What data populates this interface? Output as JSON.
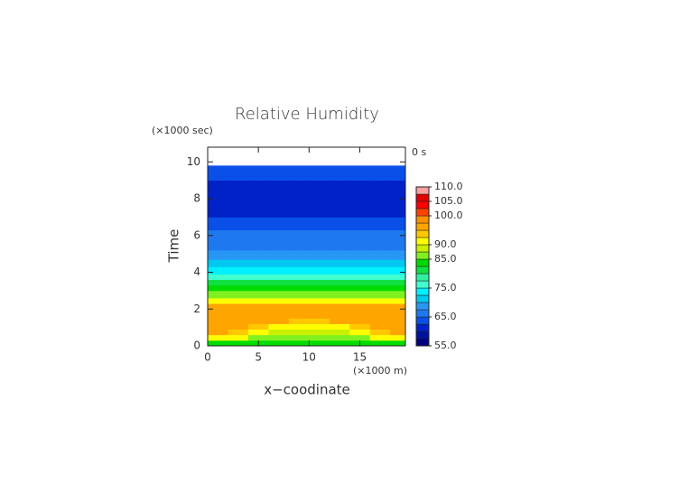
{
  "chart_data": {
    "type": "contour",
    "title": "Relative Humidity",
    "xlabel": "x−coodinate",
    "ylabel": "Time",
    "x_unit": "(×1000 m)",
    "y_unit": "(×1000 sec)",
    "time_label": "0 s",
    "xlim": [
      0,
      19.5
    ],
    "ylim": [
      0,
      10.8
    ],
    "xticks": [
      0,
      5,
      10,
      15
    ],
    "yticks": [
      0,
      2,
      4,
      6,
      8,
      10
    ],
    "x": [
      0,
      2,
      4,
      6,
      8,
      10,
      12,
      14,
      16,
      18,
      19.5
    ],
    "y": [
      0,
      0.3,
      0.6,
      0.9,
      1.2,
      1.5,
      2.0,
      2.3,
      2.6,
      3.0,
      3.3,
      3.6,
      3.9,
      4.3,
      4.7,
      5.2,
      5.7,
      6.3,
      7.0,
      8.0,
      9.0,
      9.8
    ],
    "z": [
      [
        83,
        83,
        83,
        83,
        84,
        84,
        83,
        83,
        83,
        83
      ],
      [
        91,
        90,
        87,
        86,
        86,
        86,
        86,
        87,
        90,
        91
      ],
      [
        95,
        94,
        91,
        89,
        88,
        88,
        89,
        91,
        94,
        95
      ],
      [
        96,
        96,
        94,
        92,
        91,
        91,
        92,
        94,
        96,
        96
      ],
      [
        96,
        96,
        96,
        95,
        94,
        94,
        95,
        96,
        96,
        96
      ],
      [
        96,
        96,
        96,
        96,
        96,
        96,
        96,
        96,
        96,
        96
      ],
      [
        95,
        95,
        95,
        95,
        95,
        95,
        95,
        95,
        95,
        95
      ],
      [
        91,
        91,
        91,
        91,
        91,
        91,
        91,
        91,
        91,
        91
      ],
      [
        86,
        86,
        86,
        86,
        86,
        86,
        86,
        86,
        86,
        86
      ],
      [
        84,
        84,
        84,
        84,
        84,
        84,
        84,
        84,
        84,
        84
      ],
      [
        81,
        81,
        81,
        81,
        81,
        81,
        81,
        81,
        81,
        81
      ],
      [
        77,
        77,
        77,
        77,
        77,
        77,
        77,
        77,
        77,
        77
      ],
      [
        74,
        74,
        74,
        74,
        74,
        74,
        74,
        74,
        74,
        74
      ],
      [
        72,
        72,
        72,
        72,
        72,
        72,
        72,
        72,
        72,
        72
      ],
      [
        68,
        68,
        68,
        68,
        68,
        68,
        68,
        68,
        68,
        68
      ],
      [
        67,
        67,
        67,
        67,
        67,
        67,
        67,
        67,
        67,
        67
      ],
      [
        66,
        66,
        66,
        66,
        66,
        66,
        66,
        66,
        66,
        66
      ],
      [
        63,
        63,
        63,
        63,
        63,
        63,
        63,
        63,
        63,
        63
      ],
      [
        62,
        62,
        62,
        62,
        62,
        62,
        62,
        62,
        62,
        62
      ],
      [
        62,
        62,
        62,
        62,
        62,
        62,
        62,
        62,
        62,
        62
      ],
      [
        63,
        63,
        63,
        63,
        63,
        63,
        63,
        63,
        63,
        63
      ]
    ],
    "colorbar": {
      "levels": [
        55,
        57.5,
        60,
        62.5,
        65,
        67.5,
        70,
        72.5,
        75,
        77.5,
        80,
        82.5,
        85,
        87.5,
        90,
        92.5,
        95,
        97.5,
        100,
        102.5,
        105,
        107.5,
        110
      ],
      "colors": [
        "#000080",
        "#0010a0",
        "#0022c8",
        "#0a50e8",
        "#1e78f0",
        "#2896f5",
        "#00c8f0",
        "#00f0ff",
        "#40ffd0",
        "#30f0a0",
        "#10e040",
        "#00dc00",
        "#80f020",
        "#c8f000",
        "#ffff00",
        "#ffc800",
        "#ffa500",
        "#ff9000",
        "#ff4000",
        "#ff0000",
        "#e00000",
        "#ffa0a0"
      ],
      "ticks": [
        {
          "value": 55,
          "label": "55.0"
        },
        {
          "value": 65,
          "label": "65.0"
        },
        {
          "value": 75,
          "label": "75.0"
        },
        {
          "value": 85,
          "label": "85.0"
        },
        {
          "value": 90,
          "label": "90.0"
        },
        {
          "value": 100,
          "label": "100.0"
        },
        {
          "value": 105,
          "label": "105.0"
        },
        {
          "value": 110,
          "label": "110.0"
        }
      ]
    }
  }
}
